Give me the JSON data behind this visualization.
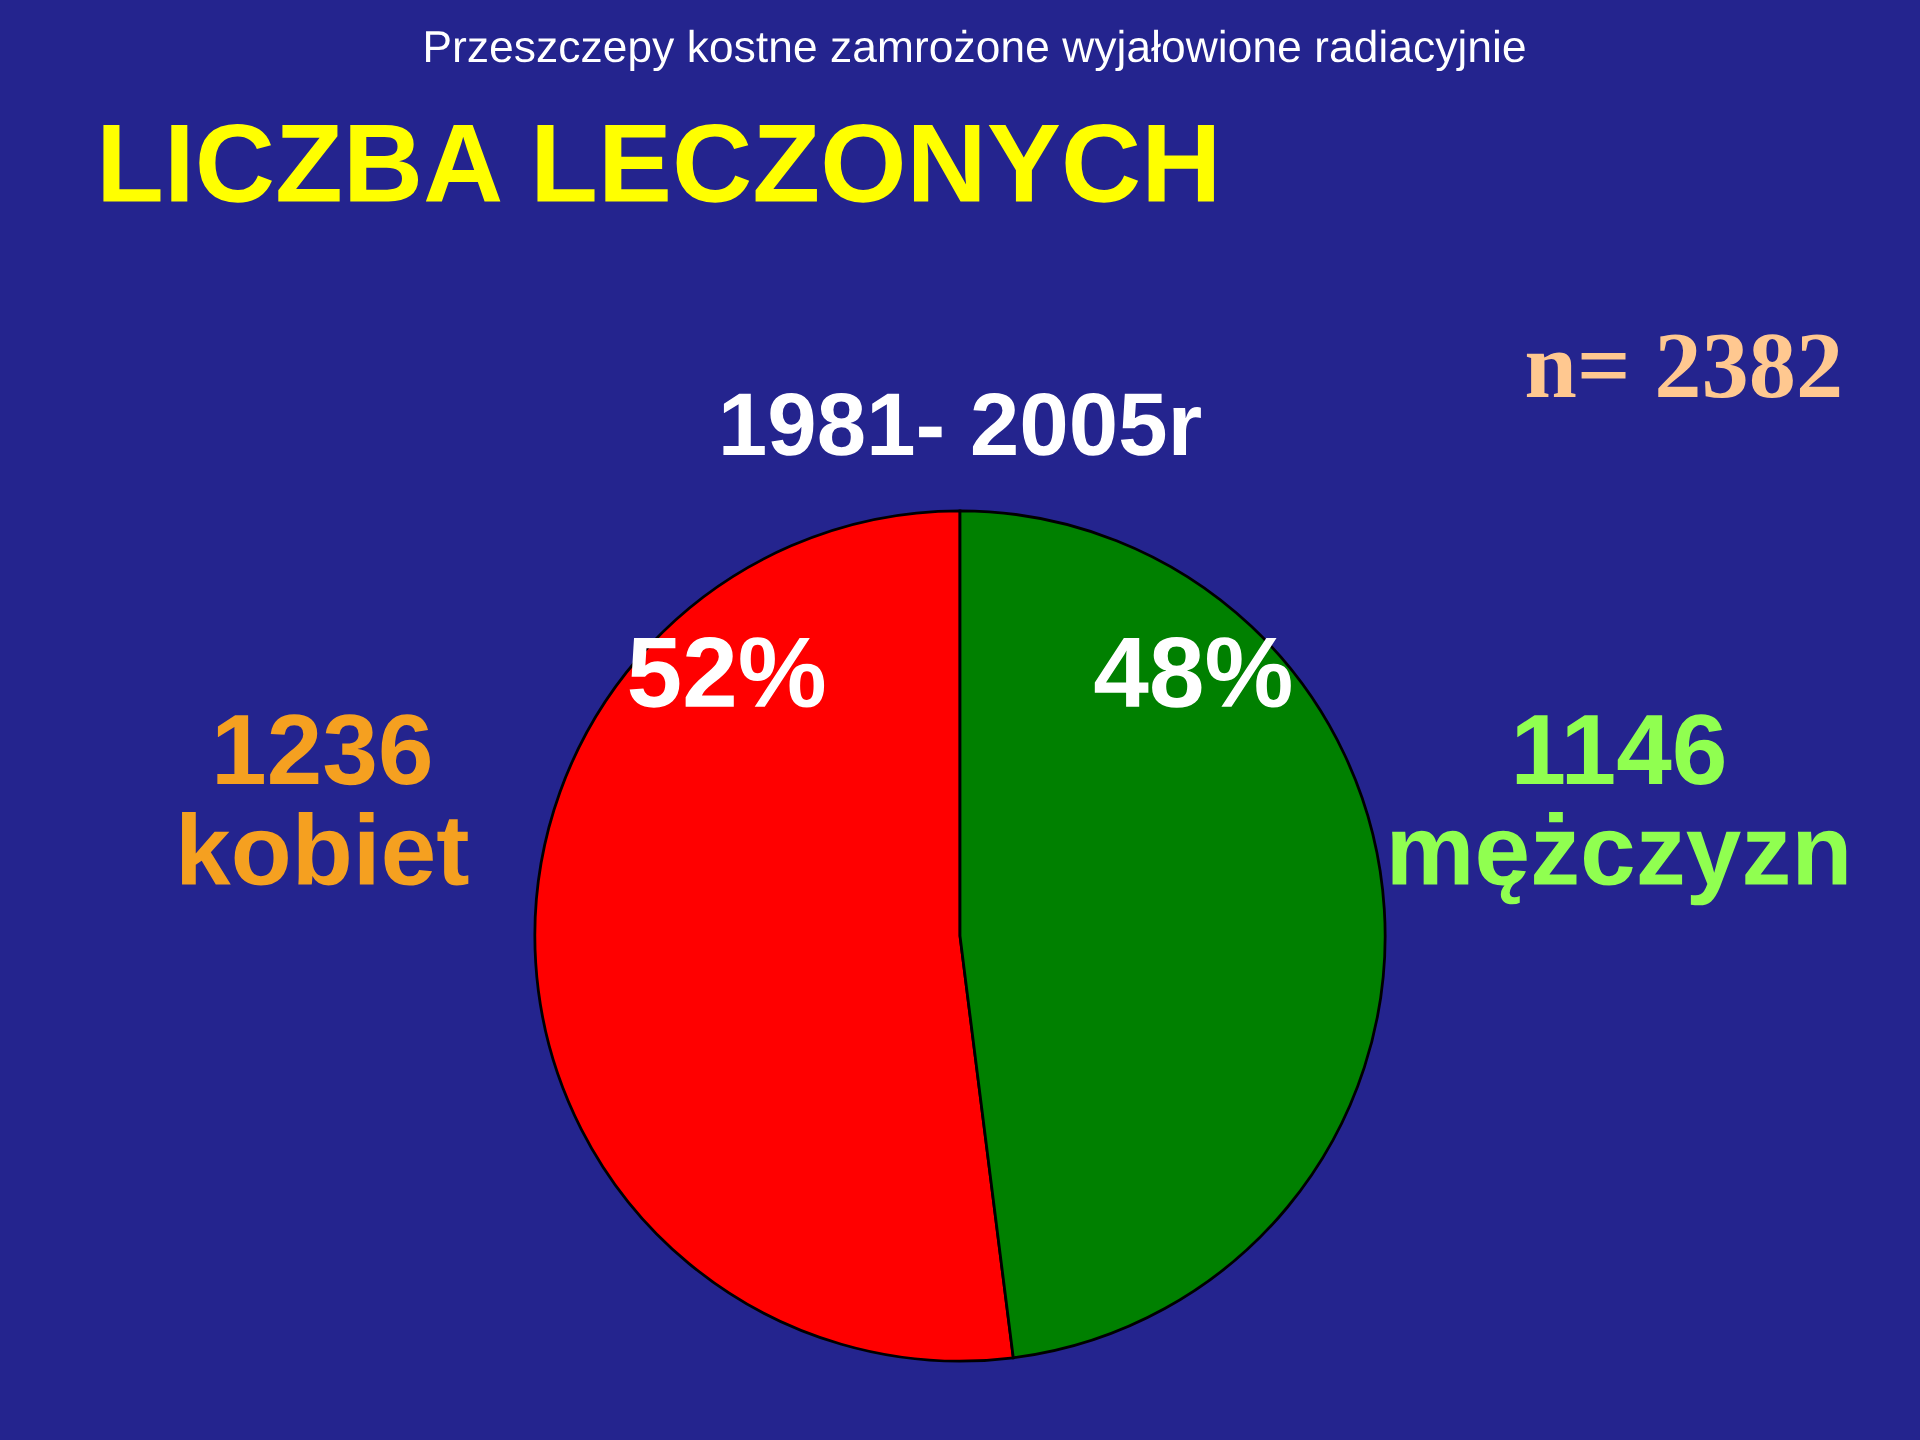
{
  "chart_data": {
    "type": "pie",
    "title": "LICZBA LECZONYCH",
    "subtitle": "1981- 2005r",
    "annotations": [
      "Przeszczepy kostne zamrożone wyjałowione radiacyjnie",
      "n= 2382"
    ],
    "categories": [
      "1236\nkobiet",
      "1146\nmężczyzn"
    ],
    "values": [
      52,
      48
    ],
    "colors": [
      "#ff0000",
      "#008000"
    ],
    "value_labels": [
      "52%",
      "48%"
    ],
    "legend": false
  }
}
